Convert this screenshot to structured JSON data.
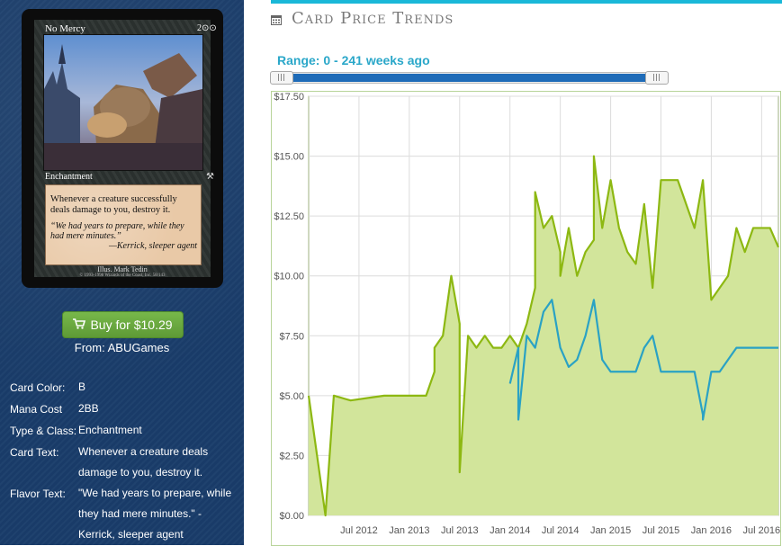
{
  "card": {
    "name": "No Mercy",
    "mana_symbols": "2⊙⊙",
    "type_line": "Enchantment",
    "set_symbol": "⚒",
    "rules_text": "Whenever a creature successfully deals damage to you, destroy it.",
    "flavor_text": "“We had years to prepare, while they had mere minutes.”",
    "flavor_attribution": "—Kerrick, sleeper agent",
    "illustrator": "Illus. Mark Tedin",
    "copyright": "© 1993-1998 Wizards of the Coast, Inc. 58/143",
    "colors": {
      "frame": "#2c3230",
      "textbox": "#e9c9a7"
    }
  },
  "buy": {
    "label": "Buy for $10.29",
    "icon": "shopping-cart-icon",
    "from": "From: ABUGames"
  },
  "info": [
    {
      "label": "Card Color:",
      "value": "B"
    },
    {
      "label": "Mana Cost",
      "value": "2BB"
    },
    {
      "label": "Type & Class:",
      "value": "Enchantment"
    },
    {
      "label": "Card Text:",
      "value": "Whenever a creature deals damage to you, destroy it."
    },
    {
      "label": "Flavor Text:",
      "value": "\"We had years to prepare, while they had mere minutes.\" - Kerrick, sleeper agent"
    }
  ],
  "header": {
    "title": "Card Price Trends",
    "icon": "calendar-icon",
    "accent": "#19b8d8"
  },
  "range": {
    "label": "Range: 0 - 241 weeks ago",
    "min_weeks": 0,
    "max_weeks": 241
  },
  "chart_data": {
    "type": "area",
    "title": "",
    "xlabel": "",
    "ylabel": "",
    "ylim": [
      0,
      17.5
    ],
    "xlim": [
      "2012-01",
      "2016-09"
    ],
    "y_ticks": [
      "$0.00",
      "$2.50",
      "$5.00",
      "$7.50",
      "$10.00",
      "$12.50",
      "$15.00",
      "$17.50"
    ],
    "y_tick_values": [
      0,
      2.5,
      5,
      7.5,
      10,
      12.5,
      15,
      17.5
    ],
    "x_ticks": [
      "Jul 2012",
      "Jan 2013",
      "Jul 2013",
      "Jan 2014",
      "Jul 2014",
      "Jan 2015",
      "Jul 2015",
      "Jan 2016",
      "Jul 2016"
    ],
    "x_tick_values": [
      "2012-07",
      "2013-01",
      "2013-07",
      "2014-01",
      "2014-07",
      "2015-01",
      "2015-07",
      "2016-01",
      "2016-07"
    ],
    "grid": true,
    "series": [
      {
        "color": "#8db812",
        "fill": "#d2e59b",
        "x": [
          "2012-01",
          "2012-03",
          "2012-04",
          "2012-06",
          "2012-08",
          "2012-10",
          "2012-12",
          "2013-01",
          "2013-02",
          "2013-03",
          "2013-04",
          "2013-04",
          "2013-05",
          "2013-06",
          "2013-06",
          "2013-07",
          "2013-07",
          "2013-08",
          "2013-09",
          "2013-10",
          "2013-11",
          "2013-12",
          "2014-01",
          "2014-02",
          "2014-03",
          "2014-04",
          "2014-04",
          "2014-05",
          "2014-06",
          "2014-07",
          "2014-07",
          "2014-08",
          "2014-09",
          "2014-10",
          "2014-11",
          "2014-11",
          "2014-12",
          "2015-01",
          "2015-02",
          "2015-03",
          "2015-04",
          "2015-05",
          "2015-06",
          "2015-07",
          "2015-08",
          "2015-09",
          "2015-10",
          "2015-11",
          "2015-12",
          "2016-01",
          "2016-02",
          "2016-03",
          "2016-04",
          "2016-05",
          "2016-06",
          "2016-07",
          "2016-08",
          "2016-09"
        ],
        "y": [
          5.0,
          0.0,
          5.0,
          4.8,
          4.9,
          5.0,
          5.0,
          5.0,
          5.0,
          5.0,
          6.0,
          7.0,
          7.5,
          10.0,
          10.0,
          8.0,
          1.8,
          7.5,
          7.0,
          7.5,
          7.0,
          7.0,
          7.5,
          7.0,
          8.0,
          9.5,
          13.5,
          12.0,
          12.5,
          11.0,
          10.0,
          12.0,
          10.0,
          11.0,
          11.5,
          15.0,
          12.0,
          14.0,
          12.0,
          11.0,
          10.5,
          13.0,
          9.5,
          14.0,
          14.0,
          14.0,
          13.0,
          12.0,
          14.0,
          9.0,
          9.5,
          10.0,
          12.0,
          11.0,
          12.0,
          12.0,
          12.0,
          11.2
        ]
      },
      {
        "color": "#2aa2c4",
        "x": [
          "2014-01",
          "2014-02",
          "2014-02",
          "2014-03",
          "2014-04",
          "2014-05",
          "2014-06",
          "2014-07",
          "2014-08",
          "2014-09",
          "2014-10",
          "2014-11",
          "2014-12",
          "2015-01",
          "2015-02",
          "2015-03",
          "2015-04",
          "2015-05",
          "2015-06",
          "2015-07",
          "2015-08",
          "2015-09",
          "2015-10",
          "2015-11",
          "2015-12",
          "2015-12",
          "2016-01",
          "2016-02",
          "2016-03",
          "2016-04",
          "2016-05",
          "2016-06",
          "2016-07",
          "2016-08",
          "2016-09"
        ],
        "y": [
          5.5,
          7.0,
          4.0,
          7.5,
          7.0,
          8.5,
          9.0,
          7.0,
          6.2,
          6.5,
          7.5,
          9.0,
          6.5,
          6.0,
          6.0,
          6.0,
          6.0,
          7.0,
          7.5,
          6.0,
          6.0,
          6.0,
          6.0,
          6.0,
          4.2,
          4.0,
          6.0,
          6.0,
          6.5,
          7.0,
          7.0,
          7.0,
          7.0,
          7.0,
          7.0
        ]
      }
    ]
  }
}
